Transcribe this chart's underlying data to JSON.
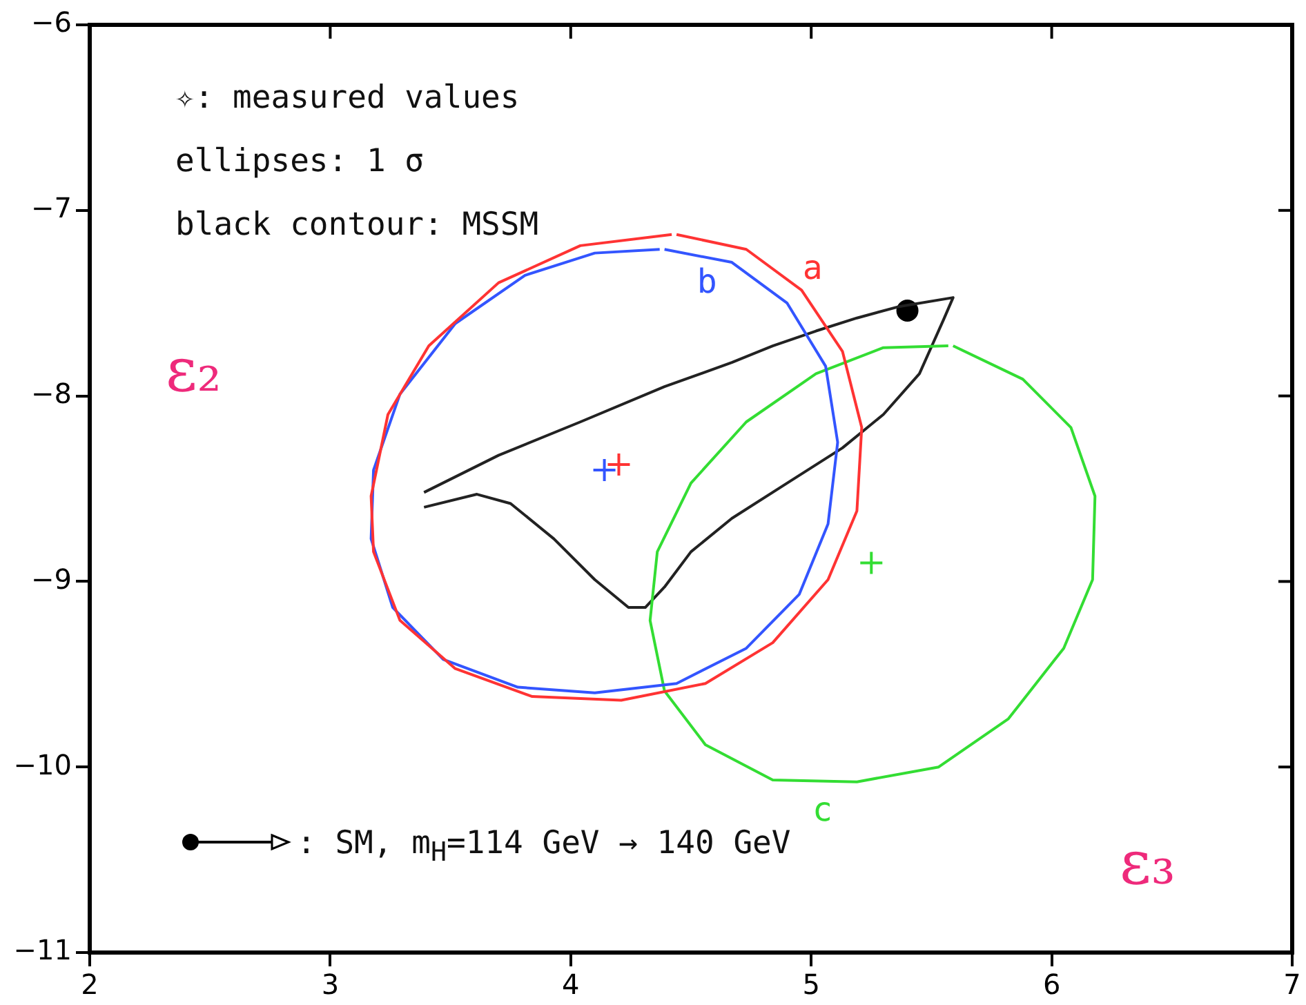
{
  "chart_data": {
    "type": "line",
    "xlabel": "ε₃",
    "ylabel": "ε₂",
    "xlim": [
      2,
      7
    ],
    "ylim": [
      -11,
      -6
    ],
    "xticks": [
      2,
      3,
      4,
      5,
      6,
      7
    ],
    "yticks": [
      -11,
      -10,
      -9,
      -8,
      -7,
      -6
    ],
    "grid": false,
    "legend": false,
    "annotations": [
      "✧: measured values",
      "ellipses: 1 σ",
      "black contour: MSSM",
      ": SM, m$_{H}$=114 GeV → 140 GeV"
    ],
    "series": [
      {
        "name": "a",
        "color": "#ff3333",
        "marker": "none",
        "x": [
          4.44,
          4.73,
          4.96,
          5.13,
          5.21,
          5.19,
          5.07,
          4.84,
          4.56,
          4.21,
          3.84,
          3.52,
          3.29,
          3.18,
          3.17,
          3.24,
          3.41,
          3.7,
          4.04,
          4.42
        ],
        "values": [
          -7.13,
          -7.21,
          -7.43,
          -7.76,
          -8.17,
          -8.62,
          -8.99,
          -9.33,
          -9.55,
          -9.64,
          -9.62,
          -9.47,
          -9.21,
          -8.84,
          -8.54,
          -8.1,
          -7.73,
          -7.39,
          -7.19,
          -7.13
        ]
      },
      {
        "name": "b",
        "color": "#3355ff",
        "marker": "none",
        "x": [
          4.39,
          4.67,
          4.9,
          5.06,
          5.11,
          5.07,
          4.95,
          4.73,
          4.44,
          4.1,
          3.78,
          3.47,
          3.26,
          3.17,
          3.18,
          3.29,
          3.52,
          3.81,
          4.1,
          4.37
        ],
        "values": [
          -7.21,
          -7.28,
          -7.5,
          -7.84,
          -8.25,
          -8.69,
          -9.07,
          -9.36,
          -9.55,
          -9.6,
          -9.57,
          -9.42,
          -9.14,
          -8.77,
          -8.4,
          -7.99,
          -7.61,
          -7.35,
          -7.23,
          -7.21
        ]
      },
      {
        "name": "c",
        "color": "#33dd33",
        "marker": "none",
        "x": [
          5.59,
          5.88,
          6.08,
          6.18,
          6.17,
          6.05,
          5.82,
          5.53,
          5.19,
          4.84,
          4.56,
          4.39,
          4.33,
          4.36,
          4.5,
          4.73,
          5.02,
          5.3,
          5.57
        ],
        "values": [
          -7.73,
          -7.91,
          -8.17,
          -8.54,
          -8.99,
          -9.36,
          -9.74,
          -10.0,
          -10.08,
          -10.07,
          -9.88,
          -9.59,
          -9.21,
          -8.84,
          -8.47,
          -8.14,
          -7.88,
          -7.74,
          -7.73
        ]
      },
      {
        "color": "#222222",
        "marker": "none",
        "x": [
          3.39,
          3.7,
          4.04,
          4.39,
          4.67,
          4.84,
          5.02,
          5.19,
          5.36,
          5.59,
          5.55,
          5.45,
          5.3,
          5.13,
          4.9,
          4.67,
          4.5,
          4.39,
          4.31,
          4.24,
          4.1,
          3.93,
          3.75,
          3.61,
          3.39
        ],
        "values": [
          -8.52,
          -8.32,
          -8.14,
          -7.95,
          -7.82,
          -7.73,
          -7.65,
          -7.58,
          -7.52,
          -7.47,
          -7.59,
          -7.88,
          -8.1,
          -8.28,
          -8.47,
          -8.66,
          -8.84,
          -9.03,
          -9.14,
          -9.14,
          -8.99,
          -8.77,
          -8.58,
          -8.53,
          -8.6
        ]
      },
      {
        "type": "scatter",
        "color": "#ff3333",
        "marker": "cross",
        "x": [
          4.2
        ],
        "values": [
          -8.37
        ]
      },
      {
        "type": "scatter",
        "color": "#3355ff",
        "marker": "cross",
        "x": [
          4.14
        ],
        "values": [
          -8.4
        ]
      },
      {
        "type": "scatter",
        "color": "#33dd33",
        "marker": "cross",
        "x": [
          5.25
        ],
        "values": [
          -8.9
        ]
      },
      {
        "type": "scatter",
        "color": "#000000",
        "marker": "circle",
        "x": [
          5.4
        ],
        "values": [
          -7.54
        ]
      }
    ]
  }
}
